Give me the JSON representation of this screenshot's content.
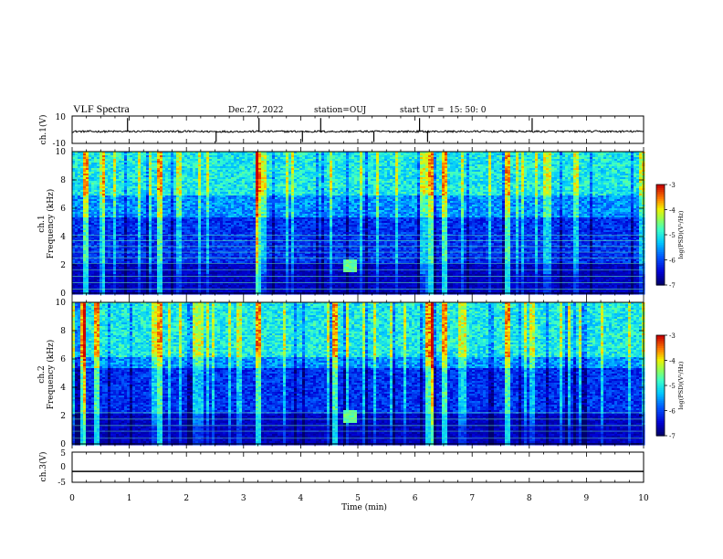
{
  "header": {
    "title": "VLF Spectra",
    "date": "Dec.27, 2022",
    "station": "station=OUJ",
    "start_label": "start  UT =",
    "start_time": "15: 50: 0"
  },
  "colors": {
    "trace": "#000000",
    "spectrogram_low": "#00007a",
    "spectrogram_high": "#cc0000"
  },
  "chart_data": [
    {
      "type": "line",
      "name": "waveform-ch1",
      "ylabel": "ch.1(V)",
      "ylim": [
        -10,
        10
      ],
      "y_ticks": [
        "10",
        "-10"
      ],
      "baseline": -1.3,
      "spike_times_min": [
        0.97,
        2.52,
        3.27,
        4.03,
        4.35,
        5.28,
        6.08,
        6.22,
        8.05
      ],
      "xlim": [
        0,
        10
      ]
    },
    {
      "type": "heatmap",
      "name": "spectrogram-ch1",
      "ylabel_channel": "ch.1",
      "ylabel": "Frequency (kHz)",
      "ylim": [
        0,
        10
      ],
      "y_ticks": [
        "0",
        "2",
        "4",
        "6",
        "8",
        "10"
      ],
      "xlim": [
        0,
        10
      ],
      "colorbar": {
        "label": "log(PSD)(V²/Hz)",
        "range": [
          -7,
          -3
        ],
        "ticks": [
          "-3",
          "-4",
          "-5",
          "-6",
          "-7"
        ]
      },
      "persistent_lines_khz": [
        0.3,
        0.75,
        1.2,
        1.65,
        2.1,
        2.5,
        2.9,
        3.3,
        3.7,
        4.1
      ],
      "emission_patch": {
        "time_min": 4.85,
        "freq_khz": 2.0
      },
      "strong_sferics_min": [
        0.2,
        0.5,
        1.5,
        3.25,
        6.2,
        6.25,
        6.5,
        7.6
      ]
    },
    {
      "type": "heatmap",
      "name": "spectrogram-ch2",
      "ylabel_channel": "ch.2",
      "ylabel": "Frequency (kHz)",
      "ylim": [
        0,
        10
      ],
      "y_ticks": [
        "0",
        "2",
        "4",
        "6",
        "8",
        "10"
      ],
      "xlim": [
        0,
        10
      ],
      "colorbar": {
        "label": "log(PSD)(V²/Hz)",
        "range": [
          -7,
          -3
        ],
        "ticks": [
          "-3",
          "-4",
          "-5",
          "-6",
          "-7"
        ]
      },
      "persistent_lines_khz": [
        0.4,
        0.9,
        1.3,
        1.75,
        2.2
      ],
      "emission_patch": {
        "time_min": 4.85,
        "freq_khz": 2.0
      },
      "strong_sferics_min": [
        0.15,
        0.4,
        1.5,
        3.25,
        4.6,
        6.2,
        6.25,
        6.5,
        7.6
      ]
    },
    {
      "type": "line",
      "name": "waveform-ch3",
      "ylabel": "ch.3(V)",
      "ylim": [
        -5,
        5
      ],
      "y_ticks": [
        "5",
        "0",
        "-5"
      ],
      "baseline": -1.4,
      "xlim": [
        0,
        10
      ]
    }
  ],
  "xaxis": {
    "label": "Time (min)",
    "ticks": [
      "0",
      "1",
      "2",
      "3",
      "4",
      "5",
      "6",
      "7",
      "8",
      "9",
      "10"
    ]
  }
}
